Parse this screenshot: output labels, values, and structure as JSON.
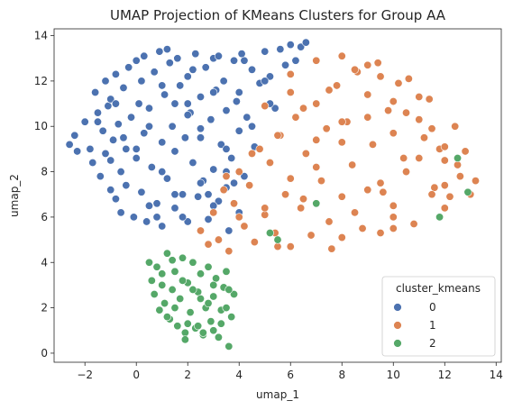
{
  "chart_data": {
    "type": "scatter",
    "title": "UMAP Projection of KMeans Clusters for Group AA",
    "xlabel": "umap_1",
    "ylabel": "umap_2",
    "xlim": [
      -3.2,
      14.2
    ],
    "ylim": [
      -0.4,
      14.3
    ],
    "xticks": [
      -2,
      0,
      2,
      4,
      6,
      8,
      10,
      12,
      14
    ],
    "yticks": [
      0,
      2,
      4,
      6,
      8,
      10,
      12,
      14
    ],
    "grid": false,
    "legend": {
      "title": "cluster_kmeans",
      "placement": "lower-right"
    },
    "series": [
      {
        "name": "0",
        "color": "#4c72b0",
        "x": [
          -2.6,
          -2.4,
          -2.3,
          -2.0,
          -1.8,
          -1.7,
          -1.6,
          -1.5,
          -1.4,
          -1.3,
          -1.2,
          -1.2,
          -1.1,
          -1.0,
          -1.0,
          -0.9,
          -0.8,
          -0.8,
          -0.7,
          -0.6,
          -0.6,
          -0.5,
          -0.4,
          -0.4,
          -0.3,
          -0.2,
          -0.1,
          0.0,
          0.0,
          0.1,
          0.2,
          0.3,
          0.3,
          0.4,
          0.5,
          0.6,
          0.7,
          0.8,
          0.9,
          1.0,
          1.0,
          1.1,
          1.2,
          1.3,
          1.4,
          1.5,
          1.5,
          1.6,
          1.7,
          1.8,
          1.9,
          2.0,
          2.0,
          2.1,
          2.2,
          2.3,
          2.4,
          2.5,
          2.5,
          2.6,
          2.7,
          2.8,
          2.9,
          3.0,
          3.0,
          3.1,
          3.2,
          3.3,
          3.4,
          3.5,
          3.5,
          3.6,
          3.7,
          3.8,
          3.9,
          4.0,
          4.0,
          4.1,
          4.2,
          4.3,
          4.5,
          4.6,
          4.8,
          5.0,
          5.2,
          5.4,
          5.6,
          5.8,
          6.0,
          6.2,
          6.4,
          6.6,
          -1.5,
          -0.5,
          0.5,
          1.5,
          2.5,
          3.5,
          4.5,
          -1.0,
          0.0,
          1.0,
          2.0,
          3.0,
          4.0,
          5.0,
          0.5,
          1.5,
          2.5,
          3.5,
          1.0,
          2.0,
          3.0,
          0.2,
          1.2,
          2.2,
          3.2,
          4.2,
          5.2,
          -0.8,
          0.8,
          1.8,
          2.8,
          3.8
        ],
        "y": [
          9.2,
          9.6,
          8.9,
          10.2,
          9.0,
          8.4,
          11.5,
          10.6,
          7.8,
          9.8,
          12.0,
          8.8,
          10.9,
          7.2,
          11.2,
          9.4,
          6.8,
          12.3,
          10.1,
          8.0,
          6.2,
          11.7,
          9.0,
          7.4,
          12.6,
          10.4,
          6.0,
          8.6,
          12.9,
          11.0,
          7.1,
          9.7,
          13.1,
          5.8,
          10.8,
          8.2,
          12.4,
          6.6,
          13.3,
          9.3,
          5.6,
          11.4,
          7.7,
          12.8,
          10.0,
          6.4,
          8.9,
          13.0,
          11.8,
          7.0,
          9.5,
          12.2,
          5.8,
          10.6,
          8.4,
          13.2,
          6.9,
          11.3,
          9.9,
          7.6,
          12.6,
          5.9,
          10.3,
          8.1,
          13.0,
          11.6,
          6.7,
          9.2,
          12.0,
          7.3,
          10.7,
          5.4,
          8.6,
          12.9,
          11.1,
          6.2,
          9.8,
          13.2,
          7.8,
          10.4,
          12.5,
          9.1,
          11.9,
          13.3,
          12.2,
          10.8,
          13.4,
          12.7,
          13.6,
          12.9,
          13.5,
          13.7,
          10.2,
          9.5,
          10.0,
          11.0,
          9.5,
          9.0,
          10.0,
          8.5,
          9.0,
          8.0,
          10.5,
          11.5,
          11.5,
          12.0,
          6.5,
          7.0,
          7.5,
          8.0,
          11.8,
          11.0,
          6.5,
          12.0,
          13.4,
          12.5,
          13.1,
          12.9,
          11.0,
          11.0,
          6.0,
          6.0,
          7.0,
          7.5
        ]
      },
      {
        "name": "1",
        "color": "#dd8452",
        "x": [
          2.5,
          2.8,
          3.0,
          3.2,
          3.4,
          3.6,
          3.8,
          4.0,
          4.2,
          4.4,
          4.6,
          4.8,
          5.0,
          5.2,
          5.4,
          5.6,
          5.8,
          6.0,
          6.2,
          6.4,
          6.6,
          6.8,
          7.0,
          7.2,
          7.4,
          7.6,
          7.8,
          8.0,
          8.2,
          8.4,
          8.6,
          8.8,
          9.0,
          9.2,
          9.4,
          9.6,
          9.8,
          10.0,
          10.2,
          10.4,
          10.6,
          10.8,
          11.0,
          11.2,
          11.4,
          11.6,
          11.8,
          12.0,
          12.2,
          12.4,
          12.6,
          12.8,
          13.0,
          13.2,
          3.5,
          4.5,
          5.5,
          6.5,
          7.5,
          8.5,
          9.5,
          10.5,
          11.5,
          12.5,
          5.0,
          6.0,
          7.0,
          8.0,
          9.0,
          10.0,
          11.0,
          12.0,
          6.5,
          7.5,
          8.5,
          9.5,
          10.5,
          4.0,
          5.0,
          6.0,
          7.0,
          8.0,
          9.0,
          10.0,
          11.0,
          12.0,
          7.0,
          8.0,
          9.0,
          10.0,
          6.0,
          8.0,
          10.0,
          12.0,
          5.5,
          9.5,
          11.5
        ],
        "y": [
          5.4,
          4.8,
          6.2,
          5.0,
          7.2,
          4.5,
          6.6,
          8.0,
          5.6,
          7.4,
          4.9,
          9.0,
          6.1,
          8.4,
          5.3,
          9.6,
          7.0,
          4.7,
          10.4,
          6.4,
          8.8,
          5.2,
          11.0,
          7.6,
          9.9,
          4.6,
          11.8,
          6.9,
          10.2,
          8.3,
          12.4,
          5.5,
          11.4,
          9.2,
          12.8,
          7.1,
          10.7,
          6.0,
          11.9,
          8.6,
          12.1,
          5.7,
          10.3,
          9.5,
          11.2,
          7.3,
          9.0,
          8.5,
          6.9,
          10.0,
          7.8,
          8.9,
          7.0,
          7.6,
          7.8,
          8.8,
          9.6,
          10.8,
          11.6,
          12.5,
          12.2,
          10.6,
          9.9,
          8.3,
          6.4,
          7.7,
          8.2,
          9.3,
          10.4,
          9.7,
          8.6,
          7.4,
          6.8,
          5.8,
          6.2,
          7.5,
          8.0,
          6.0,
          10.9,
          11.5,
          12.9,
          13.1,
          12.7,
          11.1,
          11.3,
          9.1,
          9.4,
          10.2,
          7.2,
          6.5,
          12.3,
          5.1,
          5.5,
          6.4,
          4.7,
          5.3,
          7.0
        ]
      },
      {
        "name": "2",
        "color": "#55a868",
        "x": [
          0.5,
          0.6,
          0.7,
          0.8,
          0.9,
          1.0,
          1.1,
          1.2,
          1.3,
          1.4,
          1.5,
          1.6,
          1.7,
          1.8,
          1.9,
          2.0,
          2.1,
          2.2,
          2.3,
          2.4,
          2.5,
          2.6,
          2.7,
          2.8,
          2.9,
          3.0,
          3.1,
          3.2,
          3.3,
          3.4,
          3.5,
          3.6,
          3.7,
          3.8,
          1.0,
          1.5,
          2.0,
          2.5,
          3.0,
          1.2,
          1.8,
          2.4,
          3.0,
          3.5,
          2.2,
          2.8,
          1.4,
          3.6,
          5.2,
          5.5,
          7.0,
          12.5,
          12.9,
          11.8,
          1.9,
          2.6,
          3.3
        ],
        "y": [
          4.0,
          3.2,
          2.6,
          3.8,
          1.9,
          3.0,
          2.2,
          4.4,
          1.5,
          2.8,
          3.6,
          1.2,
          2.4,
          4.2,
          0.9,
          3.1,
          1.8,
          4.0,
          1.1,
          2.7,
          3.5,
          0.8,
          2.0,
          3.8,
          1.4,
          2.5,
          3.3,
          0.7,
          1.9,
          2.9,
          3.6,
          0.3,
          1.6,
          2.6,
          3.5,
          2.0,
          1.3,
          2.4,
          1.0,
          1.6,
          3.2,
          1.2,
          3.0,
          2.0,
          2.8,
          2.2,
          4.1,
          2.8,
          5.3,
          5.0,
          6.6,
          8.6,
          7.1,
          6.0,
          0.6,
          0.9,
          1.3
        ]
      }
    ]
  }
}
